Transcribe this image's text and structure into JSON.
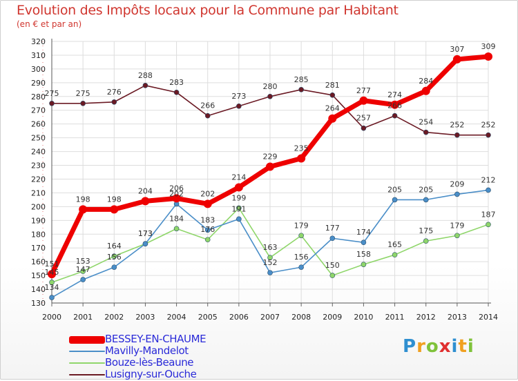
{
  "header": {
    "title": "Evolution des Impôts locaux pour la Commune par Habitant",
    "subtitle": "(en € et par an)"
  },
  "chart_data": {
    "type": "line",
    "title": "Evolution des Impôts locaux pour la Commune par Habitant",
    "subtitle": "(en € et par an)",
    "xlabel": "",
    "ylabel": "",
    "x": [
      "2000",
      "2001",
      "2002",
      "2003",
      "2004",
      "2005",
      "2006",
      "2007",
      "2008",
      "2009",
      "2010",
      "2011",
      "2012",
      "2013",
      "2014"
    ],
    "ylim": [
      130,
      320
    ],
    "yticks": [
      130,
      140,
      150,
      160,
      170,
      180,
      190,
      200,
      210,
      220,
      230,
      240,
      250,
      260,
      270,
      280,
      290,
      300,
      310,
      320
    ],
    "grid": true,
    "legend_position": "bottom-left",
    "series": [
      {
        "name": "BESSEY-EN-CHAUME",
        "color": "#ee0000",
        "values": [
          151,
          198,
          198,
          204,
          206,
          202,
          214,
          229,
          235,
          264,
          277,
          274,
          284,
          307,
          309
        ],
        "labels": [
          "151",
          "198",
          "198",
          "204",
          "206",
          "202",
          "214",
          "229",
          "235",
          "264",
          "277",
          "274",
          "284",
          "307",
          "309"
        ]
      },
      {
        "name": "Mavilly-Mandelot",
        "color": "#4a8ec8",
        "values": [
          134,
          147,
          156,
          173,
          202,
          183,
          191,
          152,
          156,
          177,
          174,
          205,
          205,
          209,
          212
        ],
        "labels": [
          "134",
          "147",
          "156",
          "173",
          "202",
          "183",
          "191",
          "152",
          "156",
          "177",
          "174",
          "205",
          "205",
          "209",
          "212"
        ]
      },
      {
        "name": "Bouze-lès-Beaune",
        "color": "#8fd66a",
        "values": [
          145,
          153,
          164,
          173,
          184,
          176,
          199,
          163,
          179,
          150,
          158,
          165,
          175,
          179,
          187
        ],
        "labels": [
          "145",
          "153",
          "164",
          "173",
          "184",
          "176",
          "199",
          "163",
          "179",
          "150",
          "158",
          "165",
          "175",
          "179",
          "187"
        ]
      },
      {
        "name": "Lusigny-sur-Ouche",
        "color": "#6b1a24",
        "values": [
          275,
          275,
          276,
          288,
          283,
          266,
          273,
          280,
          285,
          281,
          257,
          266,
          254,
          252,
          252
        ],
        "labels": [
          "275",
          "275",
          "276",
          "288",
          "283",
          "266",
          "273",
          "280",
          "285",
          "281",
          "257",
          "266",
          "254",
          "252",
          "252"
        ]
      }
    ]
  },
  "logo": {
    "letters": [
      "P",
      "r",
      "o",
      "x",
      "i",
      "t",
      "i"
    ],
    "colors": [
      "#2f8fd0",
      "#f0a020",
      "#7fc23a",
      "#e03030",
      "#2f8fd0",
      "#f0a020",
      "#7fc23a"
    ]
  }
}
